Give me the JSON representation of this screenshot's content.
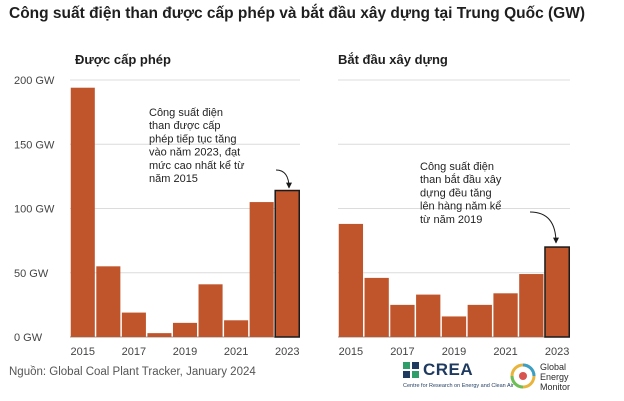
{
  "title": "Công suất điện than được cấp phép và bắt đầu xây dựng tại Trung Quốc (GW)",
  "source": "Nguồn: Global Coal Plant Tracker, January 2024",
  "logos": {
    "crea_word": "CREA",
    "crea_sub": "Centre for Research on Energy and Clean Air",
    "gem_lines": [
      "Global",
      "Energy",
      "Monitor"
    ]
  },
  "colors": {
    "bar": "#c0542b",
    "bar_highlight_stroke": "#1a1a1a",
    "grid": "#dcdcdc",
    "text": "#444444"
  },
  "chart_data": [
    {
      "type": "bar",
      "title": "Được cấp phép",
      "categories": [
        "2015",
        "2016",
        "2017",
        "2018",
        "2019",
        "2020",
        "2021",
        "2022",
        "2023"
      ],
      "values": [
        194,
        55,
        19,
        3,
        11,
        41,
        13,
        105,
        114
      ],
      "ylim": [
        0,
        200
      ],
      "yticks": [
        0,
        50,
        100,
        150,
        200
      ],
      "ytick_labels": [
        "0 GW",
        "50 GW",
        "100 GW",
        "150 GW",
        "200 GW"
      ],
      "xtick_labels": [
        "2015",
        "2017",
        "2019",
        "2021",
        "2023"
      ],
      "highlight_index": 8,
      "annotation": "Công suất điện than được cấp phép tiếp tục tăng vào năm 2023, đạt mức cao nhất kể từ năm 2015",
      "annotation_lines": [
        "Công suất điện",
        "than được cấp",
        "phép tiếp tục tăng",
        "vào năm 2023, đạt",
        "mức cao nhất kể từ",
        "năm 2015"
      ]
    },
    {
      "type": "bar",
      "title": "Bắt đầu xây dựng",
      "categories": [
        "2015",
        "2016",
        "2017",
        "2018",
        "2019",
        "2020",
        "2021",
        "2022",
        "2023"
      ],
      "values": [
        88,
        46,
        25,
        33,
        16,
        25,
        34,
        49,
        70
      ],
      "ylim": [
        0,
        200
      ],
      "yticks": [
        0,
        50,
        100,
        150,
        200
      ],
      "xtick_labels": [
        "2015",
        "2017",
        "2019",
        "2021",
        "2023"
      ],
      "highlight_index": 8,
      "annotation": "Công suất điện than bắt đầu xây dựng đều tăng lên hàng năm kể từ năm 2019",
      "annotation_lines": [
        "Công suất điện",
        "than bắt đầu xây",
        "dựng đều tăng",
        "lên hàng năm kể",
        "từ năm 2019"
      ]
    }
  ]
}
